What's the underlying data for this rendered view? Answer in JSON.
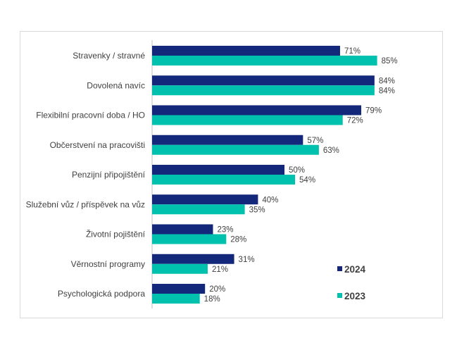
{
  "chart_data": {
    "type": "bar",
    "orientation": "horizontal",
    "categories": [
      "Stravenky / stravné",
      "Dovolená navíc",
      "Flexibilní pracovní doba / HO",
      "Občerstvení na pracovišti",
      "Penzijní připojištění",
      "Služební vůz / příspěvek na vůz",
      "Životní pojištění",
      "Věrnostní programy",
      "Psychologická podpora"
    ],
    "series": [
      {
        "name": "2024",
        "color": "#13287a",
        "values": [
          71,
          84,
          79,
          57,
          50,
          40,
          23,
          31,
          20
        ]
      },
      {
        "name": "2023",
        "color": "#00c0ae",
        "values": [
          85,
          84,
          72,
          63,
          54,
          35,
          28,
          21,
          18
        ]
      }
    ],
    "value_suffix": "%",
    "xlim": [
      0,
      100
    ],
    "grid": false,
    "legend_position": "bottom-right"
  }
}
